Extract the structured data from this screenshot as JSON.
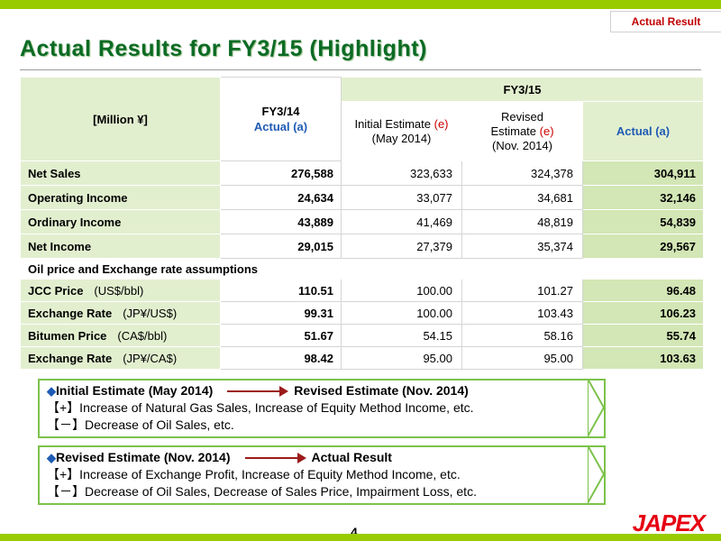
{
  "tab_label": "Actual Result",
  "title": "Actual Results for FY3/15 (Highlight)",
  "table": {
    "unit_label": "[Million ¥]",
    "fy14_label": "FY3/14",
    "fy14_sub": "Actual (a)",
    "fy15_label": "FY3/15",
    "initial_est_line1_a": "Initial Estimate ",
    "initial_est_line1_b": "(e)",
    "initial_est_line2": "(May 2014)",
    "revised_line1": "Revised",
    "revised_line2_a": "Estimate ",
    "revised_line2_b": "(e)",
    "revised_line3": "(Nov. 2014)",
    "actual_label": "Actual (a)",
    "rows": [
      {
        "label": "Net Sales",
        "fy14": "276,588",
        "initial": "323,633",
        "revised": "324,378",
        "actual": "304,911"
      },
      {
        "label": "Operating Income",
        "fy14": "24,634",
        "initial": "33,077",
        "revised": "34,681",
        "actual": "32,146"
      },
      {
        "label": "Ordinary Income",
        "fy14": "43,889",
        "initial": "41,469",
        "revised": "48,819",
        "actual": "54,839"
      },
      {
        "label": "Net Income",
        "fy14": "29,015",
        "initial": "27,379",
        "revised": "35,374",
        "actual": "29,567"
      }
    ],
    "section_label": "Oil price and Exchange rate assumptions",
    "assumptions": [
      {
        "label": "JCC Price",
        "unit": "(US$/bbl)",
        "fy14": "110.51",
        "initial": "100.00",
        "revised": "101.27",
        "actual": "96.48"
      },
      {
        "label": "Exchange Rate",
        "unit": "(JP¥/US$)",
        "fy14": "99.31",
        "initial": "100.00",
        "revised": "103.43",
        "actual": "106.23"
      },
      {
        "label": "Bitumen Price",
        "unit": "(CA$/bbl)",
        "fy14": "51.67",
        "initial": "54.15",
        "revised": "58.16",
        "actual": "55.74"
      },
      {
        "label": "Exchange Rate",
        "unit": "(JP¥/CA$)",
        "fy14": "98.42",
        "initial": "95.00",
        "revised": "95.00",
        "actual": "103.63"
      }
    ]
  },
  "box1": {
    "from": "Initial Estimate (May 2014)",
    "to": "Revised Estimate (Nov. 2014)",
    "plus": "【+】Increase of Natural Gas Sales, Increase of  Equity Method Income, etc.",
    "minus": "【－】Decrease of Oil Sales, etc."
  },
  "box2": {
    "from": "Revised Estimate (Nov. 2014)",
    "to": "Actual Result",
    "plus": "【+】Increase of  Exchange Profit, Increase of Equity Method Income, etc.",
    "minus": "【－】Decrease of Oil Sales, Decrease of Sales Price, Impairment Loss, etc."
  },
  "page_number": "4",
  "logo_text": "JAPEX",
  "colors": {
    "title_green": "#0b6b24",
    "band_green": "#99cc00",
    "logo_red": "#e60012",
    "accent_blue": "#1f5bb5"
  }
}
